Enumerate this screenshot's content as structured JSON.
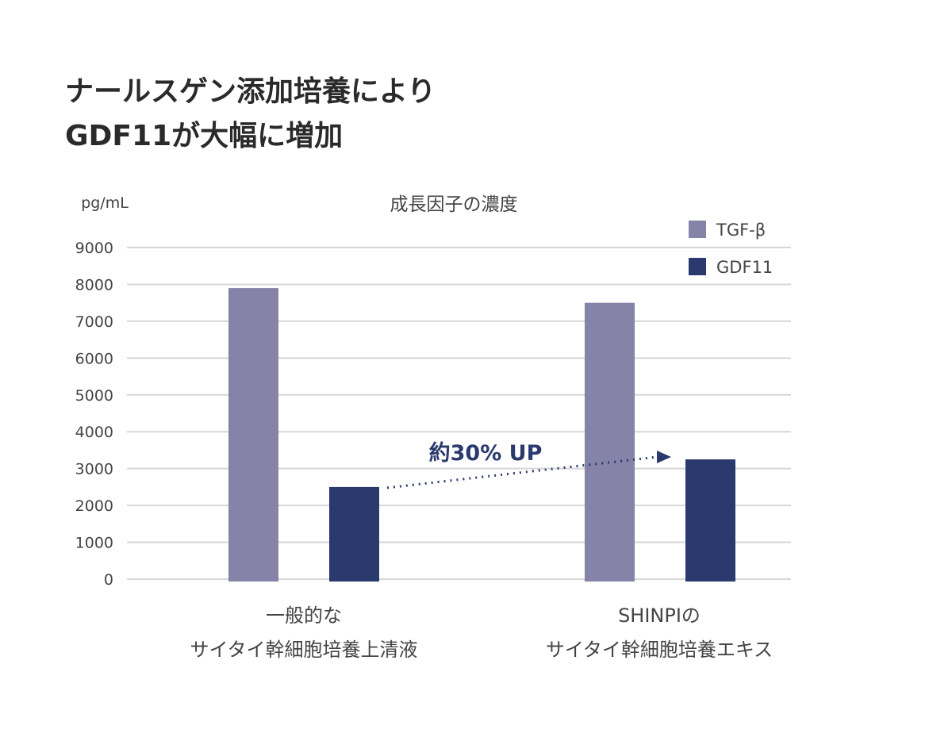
{
  "title_lines": [
    "ナールスゲン添加培養により",
    "GDF11が大幅に増加"
  ],
  "chart_data": {
    "type": "bar",
    "title": "成長因子の濃度",
    "ylabel": "pg/mL",
    "ylim": [
      0,
      9000
    ],
    "yticks": [
      0,
      1000,
      2000,
      3000,
      4000,
      5000,
      6000,
      7000,
      8000,
      9000
    ],
    "grid": true,
    "legend_position": "top-right",
    "categories": [
      [
        "一般的な",
        "サイタイ幹細胞培養上清液"
      ],
      [
        "SHINPIの",
        "サイタイ幹細胞培養エキス"
      ]
    ],
    "series": [
      {
        "name": "TGF-β",
        "color": "#8584a8",
        "values": [
          7900,
          7500
        ]
      },
      {
        "name": "GDF11",
        "color": "#2b3a6e",
        "values": [
          2500,
          3250
        ]
      }
    ],
    "annotation": {
      "text": "約30% UP",
      "color": "#2b3a6e"
    }
  }
}
